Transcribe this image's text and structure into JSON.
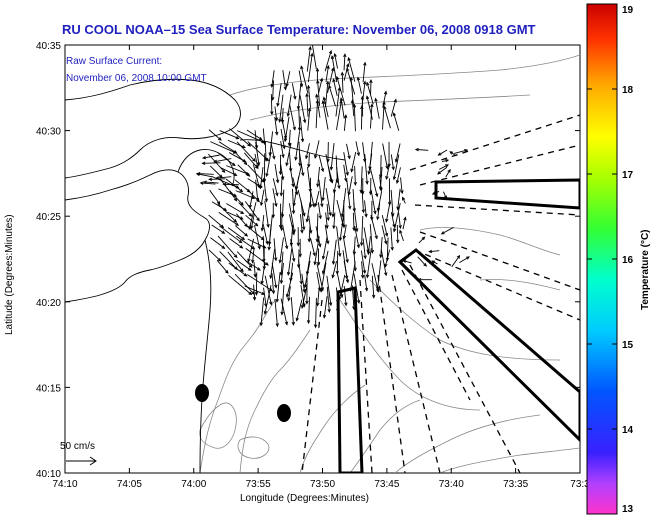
{
  "title": "RU COOL  NOAA–15  Sea Surface Temperature:  November 06, 2008 0918 GMT",
  "annotation": {
    "line1": "Raw Surface Current:",
    "line2": "November 06, 2008 10:00 GMT"
  },
  "scale_label": "50 cm/s",
  "x_axis": {
    "label": "Longitude (Degrees:Minutes)",
    "ticks": [
      "74:10",
      "74:05",
      "74:00",
      "73:55",
      "73:50",
      "73:45",
      "73:40",
      "73:35",
      "73:3"
    ]
  },
  "y_axis": {
    "label": "Latitude (Degrees:Minutes)",
    "ticks": [
      "40:35",
      "40:30",
      "40:25",
      "40:20",
      "40:15",
      "40:10"
    ]
  },
  "colorbar": {
    "label": "Temperature (°C)",
    "ticks": [
      "19",
      "18",
      "17",
      "16",
      "15",
      "14",
      "13"
    ],
    "min": 13,
    "max": 19
  },
  "colors": {
    "title": "#1f1fbf",
    "land": "#ffffff",
    "coastline": "#000000",
    "bathymetry": "#888888"
  },
  "icons": [
    "scale-arrow-icon",
    "buoy-marker-icon"
  ]
}
